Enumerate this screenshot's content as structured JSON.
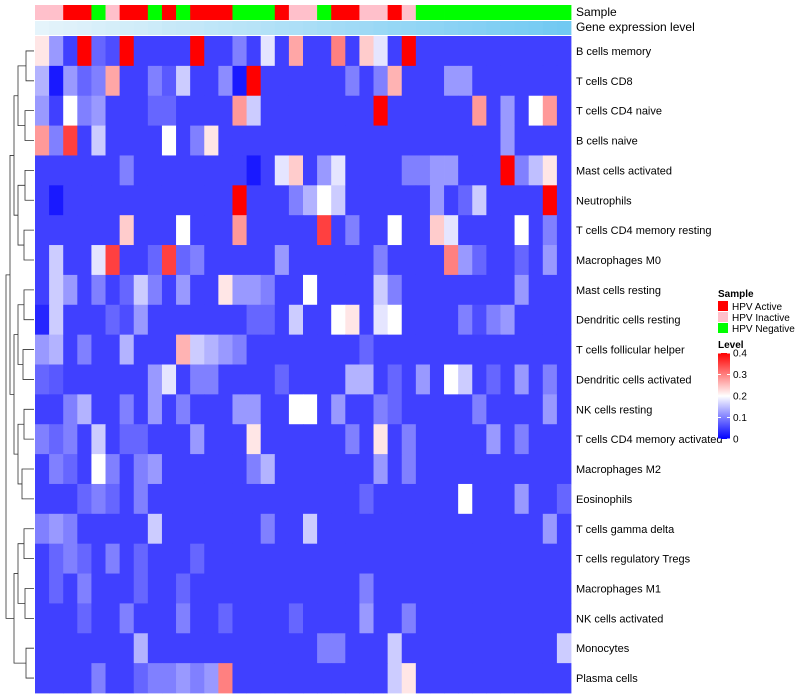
{
  "chart_data": {
    "type": "heatmap",
    "annotation_rows": [
      "Sample",
      "Gene expression level"
    ],
    "row_labels": [
      "B cells memory",
      "T cells CD8",
      "T cells CD4 naive",
      "B cells naive",
      "Mast cells activated",
      "Neutrophils",
      "T cells CD4 memory resting",
      "Macrophages M0",
      "Mast cells resting",
      "Dendritic cells resting",
      "T cells follicular helper",
      "Dendritic cells activated",
      "NK cells resting",
      "T cells CD4 memory activated",
      "Macrophages M2",
      "Eosinophils",
      "T cells gamma delta",
      "T cells regulatory  Tregs",
      "Macrophages M1",
      "NK cells activated",
      "Monocytes",
      "Plasma cells"
    ],
    "sample_groups": [
      "HPV Inactive",
      "HPV Inactive",
      "HPV Active",
      "HPV Active",
      "HPV Negative",
      "HPV Inactive",
      "HPV Active",
      "HPV Active",
      "HPV Negative",
      "HPV Active",
      "HPV Negative",
      "HPV Active",
      "HPV Active",
      "HPV Active",
      "HPV Negative",
      "HPV Negative",
      "HPV Negative",
      "HPV Active",
      "HPV Inactive",
      "HPV Inactive",
      "HPV Negative",
      "HPV Active",
      "HPV Active",
      "HPV Inactive",
      "HPV Inactive",
      "HPV Active",
      "HPV Inactive",
      "HPV Negative",
      "HPV Negative",
      "HPV Negative",
      "HPV Negative",
      "HPV Negative",
      "HPV Negative",
      "HPV Negative",
      "HPV Negative",
      "HPV Negative",
      "HPV Negative",
      "HPV Negative"
    ],
    "gene_expression_level": [
      0.05,
      0.08,
      0.1,
      0.12,
      0.15,
      0.18,
      0.2,
      0.22,
      0.25,
      0.28,
      0.3,
      0.32,
      0.35,
      0.38,
      0.4,
      0.42,
      0.45,
      0.48,
      0.5,
      0.52,
      0.55,
      0.58,
      0.6,
      0.62,
      0.65,
      0.68,
      0.7,
      0.72,
      0.75,
      0.78,
      0.8,
      0.82,
      0.85,
      0.88,
      0.9,
      0.92,
      0.95,
      0.98
    ],
    "values": [
      [
        0.22,
        0.12,
        0.05,
        0.4,
        0.08,
        0.06,
        0.4,
        0.05,
        0.05,
        0.05,
        0.05,
        0.4,
        0.05,
        0.05,
        0.1,
        0.05,
        0.18,
        0.05,
        0.27,
        0.05,
        0.05,
        0.3,
        0.05,
        0.24,
        0.18,
        0.05,
        0.4,
        0.05,
        0.05,
        0.05,
        0.05,
        0.05,
        0.05,
        0.05,
        0.05,
        0.05,
        0.05,
        0.05
      ],
      [
        0.14,
        0.02,
        0.12,
        0.08,
        0.1,
        0.27,
        0.05,
        0.05,
        0.1,
        0.07,
        0.16,
        0.05,
        0.05,
        0.11,
        0.02,
        0.4,
        0.05,
        0.05,
        0.05,
        0.05,
        0.05,
        0.05,
        0.1,
        0.05,
        0.1,
        0.26,
        0.05,
        0.05,
        0.05,
        0.12,
        0.12,
        0.05,
        0.05,
        0.05,
        0.05,
        0.05,
        0.05,
        0.05
      ],
      [
        0.12,
        0.05,
        0.2,
        0.1,
        0.12,
        0.05,
        0.05,
        0.05,
        0.08,
        0.08,
        0.05,
        0.05,
        0.05,
        0.05,
        0.28,
        0.16,
        0.05,
        0.05,
        0.05,
        0.05,
        0.05,
        0.05,
        0.05,
        0.05,
        0.4,
        0.05,
        0.05,
        0.05,
        0.05,
        0.05,
        0.05,
        0.28,
        0.05,
        0.12,
        0.05,
        0.2,
        0.28,
        0.05
      ],
      [
        0.28,
        0.1,
        0.35,
        0.05,
        0.16,
        0.05,
        0.05,
        0.05,
        0.05,
        0.2,
        0.05,
        0.1,
        0.22,
        0.05,
        0.05,
        0.05,
        0.05,
        0.05,
        0.05,
        0.05,
        0.05,
        0.05,
        0.05,
        0.05,
        0.05,
        0.05,
        0.05,
        0.05,
        0.05,
        0.05,
        0.05,
        0.05,
        0.05,
        0.12,
        0.05,
        0.05,
        0.05,
        0.05
      ],
      [
        0.05,
        0.05,
        0.05,
        0.05,
        0.05,
        0.05,
        0.1,
        0.05,
        0.05,
        0.05,
        0.05,
        0.05,
        0.05,
        0.05,
        0.05,
        0.02,
        0.05,
        0.18,
        0.24,
        0.05,
        0.12,
        0.18,
        0.05,
        0.05,
        0.05,
        0.05,
        0.1,
        0.1,
        0.12,
        0.12,
        0.05,
        0.05,
        0.05,
        0.4,
        0.1,
        0.15,
        0.22,
        0.05
      ],
      [
        0.05,
        0.02,
        0.05,
        0.05,
        0.05,
        0.05,
        0.05,
        0.05,
        0.05,
        0.05,
        0.05,
        0.05,
        0.05,
        0.05,
        0.4,
        0.05,
        0.05,
        0.05,
        0.1,
        0.14,
        0.2,
        0.16,
        0.05,
        0.05,
        0.05,
        0.05,
        0.05,
        0.05,
        0.12,
        0.05,
        0.08,
        0.16,
        0.05,
        0.05,
        0.05,
        0.05,
        0.4,
        0.05
      ],
      [
        0.05,
        0.05,
        0.05,
        0.05,
        0.05,
        0.05,
        0.24,
        0.05,
        0.05,
        0.05,
        0.2,
        0.05,
        0.05,
        0.05,
        0.28,
        0.05,
        0.05,
        0.05,
        0.05,
        0.05,
        0.35,
        0.05,
        0.1,
        0.05,
        0.05,
        0.2,
        0.05,
        0.05,
        0.24,
        0.18,
        0.05,
        0.05,
        0.05,
        0.05,
        0.2,
        0.05,
        0.1,
        0.05
      ],
      [
        0.05,
        0.16,
        0.05,
        0.05,
        0.18,
        0.35,
        0.05,
        0.05,
        0.08,
        0.35,
        0.08,
        0.1,
        0.05,
        0.05,
        0.05,
        0.05,
        0.05,
        0.12,
        0.05,
        0.05,
        0.05,
        0.05,
        0.05,
        0.05,
        0.1,
        0.05,
        0.05,
        0.05,
        0.05,
        0.3,
        0.12,
        0.08,
        0.05,
        0.05,
        0.08,
        0.05,
        0.12,
        0.05
      ],
      [
        0.05,
        0.16,
        0.12,
        0.05,
        0.1,
        0.05,
        0.08,
        0.16,
        0.1,
        0.05,
        0.12,
        0.05,
        0.05,
        0.22,
        0.12,
        0.12,
        0.1,
        0.05,
        0.05,
        0.2,
        0.05,
        0.05,
        0.05,
        0.05,
        0.16,
        0.1,
        0.05,
        0.05,
        0.05,
        0.05,
        0.05,
        0.05,
        0.05,
        0.05,
        0.12,
        0.05,
        0.05,
        0.05
      ],
      [
        0.03,
        0.16,
        0.05,
        0.05,
        0.05,
        0.08,
        0.06,
        0.12,
        0.05,
        0.05,
        0.05,
        0.05,
        0.05,
        0.05,
        0.05,
        0.08,
        0.08,
        0.05,
        0.16,
        0.05,
        0.05,
        0.2,
        0.22,
        0.05,
        0.18,
        0.2,
        0.05,
        0.05,
        0.05,
        0.05,
        0.1,
        0.06,
        0.1,
        0.12,
        0.05,
        0.05,
        0.05,
        0.05
      ],
      [
        0.12,
        0.14,
        0.05,
        0.1,
        0.05,
        0.05,
        0.14,
        0.05,
        0.05,
        0.05,
        0.26,
        0.16,
        0.14,
        0.12,
        0.1,
        0.05,
        0.05,
        0.05,
        0.05,
        0.05,
        0.05,
        0.05,
        0.05,
        0.08,
        0.05,
        0.05,
        0.05,
        0.05,
        0.05,
        0.05,
        0.05,
        0.05,
        0.05,
        0.05,
        0.05,
        0.05,
        0.05,
        0.05
      ],
      [
        0.08,
        0.07,
        0.05,
        0.05,
        0.05,
        0.05,
        0.05,
        0.05,
        0.12,
        0.18,
        0.05,
        0.1,
        0.1,
        0.05,
        0.05,
        0.05,
        0.05,
        0.08,
        0.05,
        0.05,
        0.05,
        0.05,
        0.14,
        0.14,
        0.05,
        0.08,
        0.05,
        0.12,
        0.05,
        0.2,
        0.16,
        0.05,
        0.08,
        0.05,
        0.12,
        0.05,
        0.1,
        0.05
      ],
      [
        0.05,
        0.05,
        0.1,
        0.14,
        0.05,
        0.05,
        0.1,
        0.05,
        0.12,
        0.05,
        0.1,
        0.05,
        0.05,
        0.05,
        0.12,
        0.12,
        0.05,
        0.05,
        0.2,
        0.2,
        0.05,
        0.12,
        0.05,
        0.05,
        0.1,
        0.08,
        0.05,
        0.05,
        0.05,
        0.05,
        0.05,
        0.1,
        0.05,
        0.05,
        0.05,
        0.05,
        0.12,
        0.05
      ],
      [
        0.1,
        0.08,
        0.1,
        0.05,
        0.16,
        0.05,
        0.08,
        0.08,
        0.05,
        0.05,
        0.05,
        0.12,
        0.05,
        0.05,
        0.05,
        0.22,
        0.05,
        0.05,
        0.05,
        0.05,
        0.05,
        0.05,
        0.1,
        0.05,
        0.22,
        0.05,
        0.1,
        0.05,
        0.05,
        0.05,
        0.05,
        0.05,
        0.12,
        0.05,
        0.1,
        0.05,
        0.05,
        0.05
      ],
      [
        0.05,
        0.1,
        0.08,
        0.05,
        0.2,
        0.1,
        0.05,
        0.1,
        0.12,
        0.05,
        0.05,
        0.05,
        0.05,
        0.05,
        0.05,
        0.1,
        0.14,
        0.05,
        0.05,
        0.05,
        0.05,
        0.05,
        0.05,
        0.05,
        0.12,
        0.05,
        0.1,
        0.05,
        0.05,
        0.05,
        0.05,
        0.05,
        0.05,
        0.05,
        0.05,
        0.05,
        0.05,
        0.05
      ],
      [
        0.05,
        0.05,
        0.05,
        0.08,
        0.1,
        0.08,
        0.05,
        0.1,
        0.05,
        0.05,
        0.05,
        0.05,
        0.05,
        0.05,
        0.05,
        0.05,
        0.05,
        0.05,
        0.05,
        0.05,
        0.05,
        0.05,
        0.05,
        0.08,
        0.05,
        0.05,
        0.05,
        0.05,
        0.05,
        0.05,
        0.2,
        0.05,
        0.05,
        0.05,
        0.12,
        0.05,
        0.05,
        0.08
      ],
      [
        0.1,
        0.12,
        0.1,
        0.05,
        0.05,
        0.05,
        0.05,
        0.05,
        0.16,
        0.05,
        0.05,
        0.05,
        0.05,
        0.05,
        0.05,
        0.05,
        0.1,
        0.05,
        0.05,
        0.16,
        0.05,
        0.05,
        0.05,
        0.05,
        0.05,
        0.05,
        0.05,
        0.05,
        0.05,
        0.05,
        0.05,
        0.05,
        0.05,
        0.05,
        0.05,
        0.05,
        0.12,
        0.05
      ],
      [
        0.05,
        0.08,
        0.1,
        0.08,
        0.05,
        0.1,
        0.05,
        0.08,
        0.05,
        0.05,
        0.05,
        0.08,
        0.05,
        0.05,
        0.05,
        0.05,
        0.05,
        0.05,
        0.05,
        0.05,
        0.05,
        0.05,
        0.05,
        0.05,
        0.05,
        0.05,
        0.05,
        0.05,
        0.05,
        0.05,
        0.05,
        0.05,
        0.05,
        0.05,
        0.05,
        0.05,
        0.05,
        0.05
      ],
      [
        0.05,
        0.08,
        0.05,
        0.1,
        0.05,
        0.05,
        0.05,
        0.08,
        0.05,
        0.05,
        0.08,
        0.05,
        0.05,
        0.05,
        0.05,
        0.05,
        0.05,
        0.05,
        0.05,
        0.05,
        0.05,
        0.05,
        0.05,
        0.1,
        0.05,
        0.05,
        0.05,
        0.05,
        0.05,
        0.05,
        0.05,
        0.05,
        0.05,
        0.05,
        0.05,
        0.05,
        0.05,
        0.05
      ],
      [
        0.05,
        0.05,
        0.05,
        0.08,
        0.05,
        0.05,
        0.1,
        0.05,
        0.05,
        0.05,
        0.1,
        0.05,
        0.05,
        0.08,
        0.05,
        0.05,
        0.05,
        0.05,
        0.08,
        0.05,
        0.05,
        0.05,
        0.05,
        0.12,
        0.05,
        0.05,
        0.1,
        0.05,
        0.05,
        0.05,
        0.05,
        0.05,
        0.05,
        0.05,
        0.05,
        0.05,
        0.05,
        0.05
      ],
      [
        0.05,
        0.05,
        0.05,
        0.05,
        0.05,
        0.05,
        0.05,
        0.14,
        0.05,
        0.05,
        0.05,
        0.05,
        0.05,
        0.05,
        0.05,
        0.05,
        0.05,
        0.05,
        0.05,
        0.05,
        0.1,
        0.1,
        0.05,
        0.05,
        0.05,
        0.16,
        0.05,
        0.05,
        0.05,
        0.05,
        0.05,
        0.05,
        0.05,
        0.05,
        0.05,
        0.05,
        0.05,
        0.16
      ],
      [
        0.05,
        0.05,
        0.05,
        0.05,
        0.1,
        0.05,
        0.05,
        0.08,
        0.1,
        0.1,
        0.12,
        0.1,
        0.12,
        0.3,
        0.05,
        0.05,
        0.05,
        0.05,
        0.05,
        0.05,
        0.05,
        0.05,
        0.05,
        0.05,
        0.05,
        0.16,
        0.22,
        0.05,
        0.05,
        0.05,
        0.05,
        0.05,
        0.05,
        0.05,
        0.05,
        0.05,
        0.05,
        0.05
      ]
    ],
    "color_scale": {
      "min": 0,
      "max": 0.4,
      "low": "#0000FF",
      "mid": "#FFFFFF",
      "high": "#FF0000",
      "midpoint": 0.2
    },
    "legend": {
      "sample_title": "Sample",
      "sample_entries": [
        {
          "label": "HPV Active",
          "color": "#FF0000"
        },
        {
          "label": "HPV Inactive",
          "color": "#FFC0CB"
        },
        {
          "label": "HPV Negative",
          "color": "#00FF00"
        }
      ],
      "level_title": "Level",
      "level_ticks": [
        0.4,
        0.3,
        0.2,
        0.1,
        0
      ],
      "level_tick_labels": [
        "0.4",
        "0.3",
        "0.2",
        "0.1",
        "0"
      ],
      "position": "right"
    }
  }
}
